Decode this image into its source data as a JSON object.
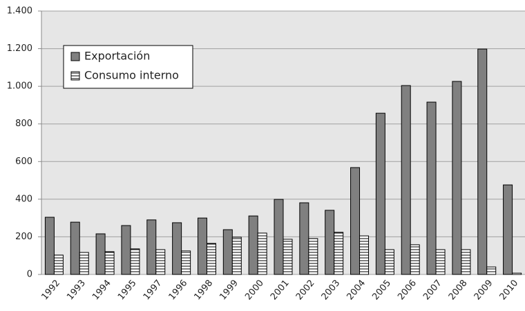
{
  "chart_data": {
    "type": "bar",
    "categories": [
      "1992",
      "1993",
      "1994",
      "1995",
      "1997",
      "1996",
      "1998",
      "1999",
      "2000",
      "2001",
      "2002",
      "2003",
      "2004",
      "2005",
      "2006",
      "2007",
      "2008",
      "2009",
      "2010"
    ],
    "series": [
      {
        "name": "Exportación",
        "color": "#808080",
        "values": [
          304,
          278,
          216,
          260,
          290,
          275,
          300,
          238,
          311,
          399,
          381,
          341,
          568,
          857,
          1004,
          916,
          1026,
          1198,
          476
        ]
      },
      {
        "name": "Consumo interno",
        "color": "#ffffff",
        "values": [
          103,
          117,
          121,
          136,
          132,
          125,
          165,
          198,
          220,
          187,
          191,
          224,
          205,
          132,
          158,
          132,
          132,
          40,
          7
        ]
      }
    ],
    "ylim": [
      0,
      1400
    ],
    "yticks": [
      0,
      200,
      400,
      600,
      800,
      {
        "value": 1000,
        "label": "1.000"
      },
      {
        "value": 1200,
        "label": "1.200"
      },
      {
        "value": 1400,
        "label": "1.400"
      }
    ],
    "grid": true,
    "legend": "upper-left"
  }
}
